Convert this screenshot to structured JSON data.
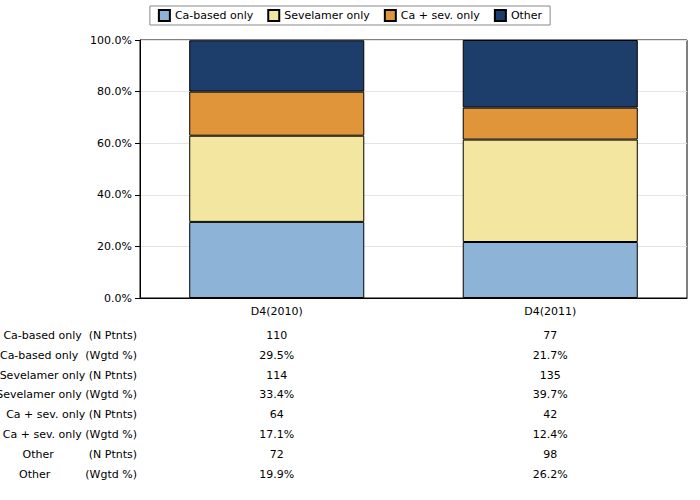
{
  "chart_data": {
    "type": "bar",
    "stacked": true,
    "legend": "top",
    "grid": true,
    "categories": [
      "D4(2010)",
      "D4(2011)"
    ],
    "series": [
      {
        "name": "Ca-based only",
        "color": "#8db3d6",
        "values": [
          29.5,
          21.7
        ]
      },
      {
        "name": "Sevelamer only",
        "color": "#f3e6a0",
        "values": [
          33.4,
          39.7
        ]
      },
      {
        "name": "Ca + sev. only",
        "color": "#e0953a",
        "values": [
          17.1,
          12.4
        ]
      },
      {
        "name": "Other",
        "color": "#1d3d6b",
        "values": [
          19.9,
          26.2
        ]
      }
    ],
    "ylim": [
      0,
      100
    ],
    "yticks": [
      {
        "value": 0,
        "label": "0.0%"
      },
      {
        "value": 20,
        "label": "20.0%"
      },
      {
        "value": 40,
        "label": "40.0%"
      },
      {
        "value": 60,
        "label": "60.0%"
      },
      {
        "value": 80,
        "label": "80.0%"
      },
      {
        "value": 100,
        "label": "100.0%"
      }
    ]
  },
  "table": {
    "rows": [
      {
        "label": "Ca-based only  (N Ptnts)",
        "cells": [
          "110",
          "77"
        ]
      },
      {
        "label": "Ca-based only  (Wgtd %)",
        "cells": [
          "29.5%",
          "21.7%"
        ]
      },
      {
        "label": "Sevelamer only (N Ptnts)",
        "cells": [
          "114",
          "135"
        ]
      },
      {
        "label": "Sevelamer only (Wgtd %)",
        "cells": [
          "33.4%",
          "39.7%"
        ]
      },
      {
        "label": "Ca + sev. only (N Ptnts)",
        "cells": [
          "64",
          "42"
        ]
      },
      {
        "label": "Ca + sev. only (Wgtd %)",
        "cells": [
          "17.1%",
          "12.4%"
        ]
      },
      {
        "label": "Other          (N Ptnts)",
        "cells": [
          "72",
          "98"
        ]
      },
      {
        "label": "Other          (Wgtd %)",
        "cells": [
          "19.9%",
          "26.2%"
        ]
      }
    ]
  }
}
